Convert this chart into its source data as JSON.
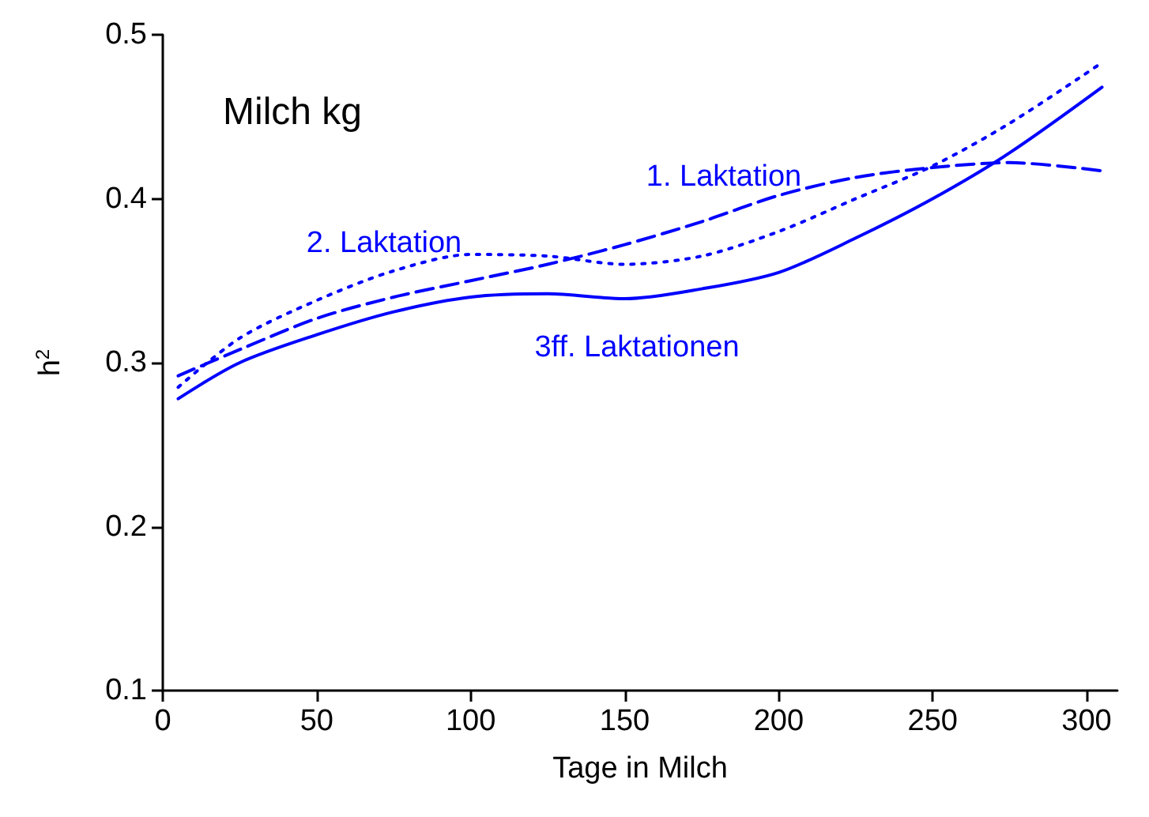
{
  "chart_data": {
    "type": "line",
    "title": "Milch kg",
    "xlabel": "Tage in Milch",
    "ylabel": "h$^{2}$",
    "xlim": [
      0,
      310
    ],
    "xticks": [
      0,
      50,
      100,
      150,
      200,
      250,
      300
    ],
    "ylim": [
      0.1,
      0.5
    ],
    "yticks": [
      0.1,
      0.2,
      0.3,
      0.4,
      0.5
    ],
    "grid": false,
    "marker": "none",
    "series": [
      {
        "name": "1. Laktation",
        "color": "#0000ff",
        "line_style": "dashed",
        "x": [
          5,
          25,
          50,
          75,
          100,
          125,
          150,
          175,
          200,
          225,
          250,
          275,
          305
        ],
        "values": [
          0.292,
          0.308,
          0.327,
          0.34,
          0.35,
          0.36,
          0.372,
          0.386,
          0.402,
          0.413,
          0.419,
          0.422,
          0.417
        ]
      },
      {
        "name": "2. Laktation",
        "color": "#0000ff",
        "line_style": "dotted",
        "x": [
          5,
          25,
          50,
          75,
          100,
          125,
          150,
          175,
          200,
          225,
          250,
          275,
          305
        ],
        "values": [
          0.285,
          0.315,
          0.338,
          0.356,
          0.366,
          0.365,
          0.36,
          0.365,
          0.38,
          0.4,
          0.42,
          0.446,
          0.483
        ]
      },
      {
        "name": "3ff. Laktationen",
        "color": "#0000ff",
        "line_style": "solid",
        "x": [
          5,
          25,
          50,
          75,
          100,
          125,
          150,
          175,
          200,
          225,
          250,
          275,
          305
        ],
        "values": [
          0.278,
          0.3,
          0.317,
          0.331,
          0.34,
          0.342,
          0.339,
          0.345,
          0.355,
          0.376,
          0.4,
          0.428,
          0.468
        ]
      }
    ]
  }
}
